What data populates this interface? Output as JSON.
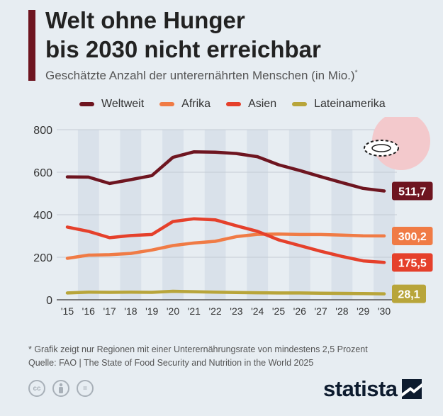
{
  "header": {
    "title_line1": "Welt ohne Hunger",
    "title_line2": "bis 2030 nicht erreichbar",
    "subtitle": "Geschätzte Anzahl der unterernährten Menschen (in Mio.)",
    "subtitle_mark": "*"
  },
  "colors": {
    "accent_bar": "#6e1520",
    "highlight_bands": "#d9e1ea"
  },
  "chart_data": {
    "type": "line",
    "title": "",
    "xlabel": "",
    "ylabel": "",
    "x": [
      "'15",
      "'16",
      "'17",
      "'18",
      "'19",
      "'20",
      "'21",
      "'22",
      "'23",
      "'24",
      "'25",
      "'26",
      "'27",
      "'28",
      "'29",
      "'30"
    ],
    "ylim": [
      0,
      800
    ],
    "yticks": [
      "0",
      "200",
      "400",
      "600",
      "800"
    ],
    "grid": true,
    "highlighted_columns": [
      "'16",
      "'18",
      "'20",
      "'22",
      "'24",
      "'26",
      "'28",
      "'30"
    ],
    "legend_position": "top",
    "series": [
      {
        "name": "Weltweit",
        "color": "#6e1520",
        "end_label": "511,7",
        "values": [
          578,
          577,
          547,
          565,
          584,
          670,
          696,
          694,
          688,
          673,
          635,
          608,
          579,
          551,
          524,
          511.7
        ]
      },
      {
        "name": "Afrika",
        "color": "#f07b45",
        "end_label": "300,2",
        "values": [
          195,
          210,
          212,
          218,
          234,
          255,
          267,
          275,
          297,
          308,
          309,
          307,
          307,
          304,
          301,
          300.2
        ]
      },
      {
        "name": "Asien",
        "color": "#e5402b",
        "end_label": "175,5",
        "values": [
          342,
          322,
          292,
          302,
          307,
          368,
          381,
          376,
          348,
          322,
          282,
          255,
          228,
          204,
          183,
          175.5
        ]
      },
      {
        "name": "Lateinamerika",
        "color": "#b8a53a",
        "end_label": "28,1",
        "values": [
          32,
          36,
          35,
          36,
          35,
          40,
          38,
          36,
          34,
          33,
          32,
          32,
          31,
          30,
          29,
          28.1
        ]
      }
    ]
  },
  "footnote": {
    "line1": "* Grafik zeigt nur Regionen mit einer Unterernährungsrate von mindestens 2,5 Prozent",
    "line2": "Quelle: FAO | The State of Food Security and Nutrition in the World 2025"
  },
  "footer": {
    "cc_icons": [
      "cc-icon",
      "by-icon",
      "nd-icon"
    ],
    "cc_glyph": "cc",
    "nd_glyph": "=",
    "brand": "statista"
  }
}
